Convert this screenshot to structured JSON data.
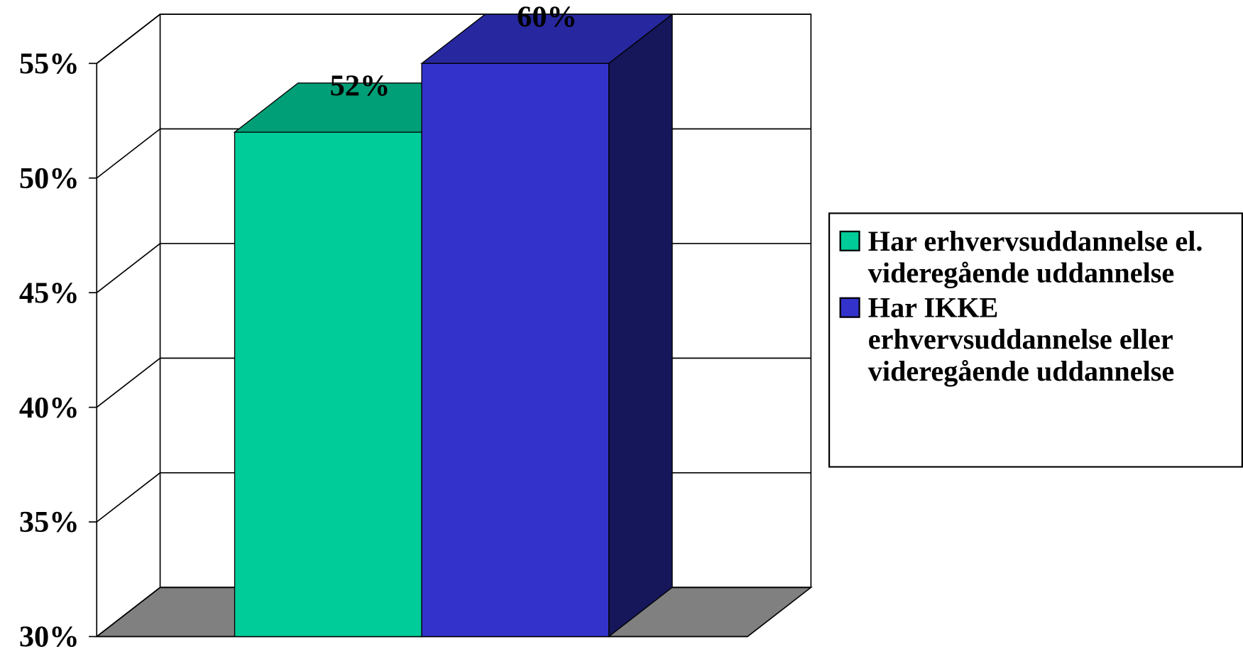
{
  "chart_data": {
    "type": "bar3d",
    "categories": [
      null
    ],
    "series": [
      {
        "name": "Har erhvervsuddannelse el. videregående uddannelse",
        "color": "#00CC99",
        "values": [
          52
        ],
        "value_labels": [
          "52%"
        ]
      },
      {
        "name": "Har IKKE erhvervsuddannelse eller videregående uddannelse",
        "color": "#3333CC",
        "values": [
          60
        ],
        "value_labels": [
          "60%"
        ]
      }
    ],
    "ylim": [
      30,
      55
    ],
    "yticks": [
      {
        "value": 30,
        "label": "30%"
      },
      {
        "value": 35,
        "label": "35%"
      },
      {
        "value": 40,
        "label": "40%"
      },
      {
        "value": 45,
        "label": "45%"
      },
      {
        "value": 50,
        "label": "50%"
      },
      {
        "value": 55,
        "label": "55%"
      }
    ],
    "grid": true,
    "legend": "right"
  }
}
